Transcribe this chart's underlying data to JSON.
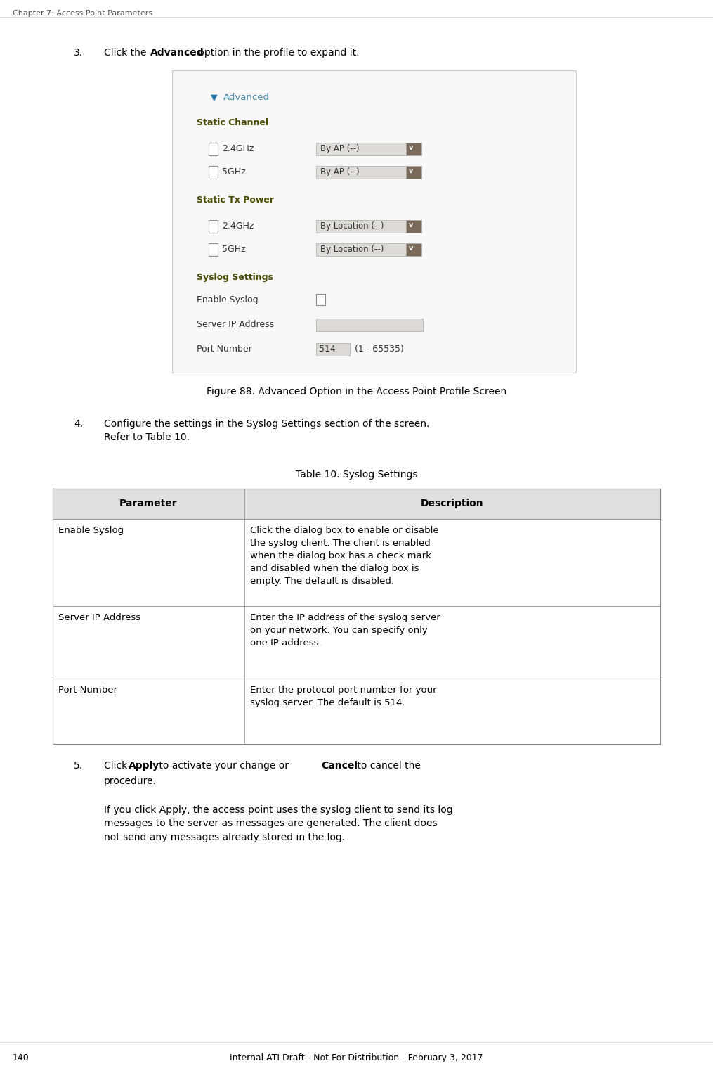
{
  "page_width": 10.15,
  "page_height": 15.26,
  "bg_color": "#ffffff",
  "header_text": "Chapter 7: Access Point Parameters",
  "footer_page_num": "140",
  "footer_center": "Internal ATI Draft - Not For Distribution - February 3, 2017",
  "figure_caption": "Figure 88. Advanced Option in the Access Point Profile Screen",
  "step4_text": "Configure the settings in the Syslog Settings section of the screen.\nRefer to Table 10.",
  "step5_extra": "If you click Apply, the access point uses the syslog client to send its log\nmessages to the server as messages are generated. The client does\nnot send any messages already stored in the log.",
  "table_title": "Table 10. Syslog Settings",
  "table_headers": [
    "Parameter",
    "Description"
  ],
  "table_rows": [
    [
      "Enable Syslog",
      "Click the dialog box to enable or disable\nthe syslog client. The client is enabled\nwhen the dialog box has a check mark\nand disabled when the dialog box is\nempty. The default is disabled."
    ],
    [
      "Server IP Address",
      "Enter the IP address of the syslog server\non your network. You can specify only\none IP address."
    ],
    [
      "Port Number",
      "Enter the protocol port number for your\nsyslog server. The default is 514."
    ]
  ],
  "ui_advanced_label": "Advanced",
  "ui_static_channel": "Static Channel",
  "ui_static_tx": "Static Tx Power",
  "ui_syslog": "Syslog Settings",
  "ui_enable_syslog": "Enable Syslog",
  "ui_server_ip": "Server IP Address",
  "ui_port": "Port Number",
  "ui_port_val": "514",
  "ui_port_range": "(1 - 65535)",
  "ui_2_4ghz": "2.4GHz",
  "ui_5ghz": "5GHz",
  "ui_by_ap": "By AP (--)",
  "ui_by_location": "By Location (--)",
  "ui_dropdown_bg": "#dedad6",
  "ui_dropdown_btn": "#7a6a5a",
  "ui_text_color": "#333333",
  "text_color": "#000000",
  "header_color": "#555555"
}
